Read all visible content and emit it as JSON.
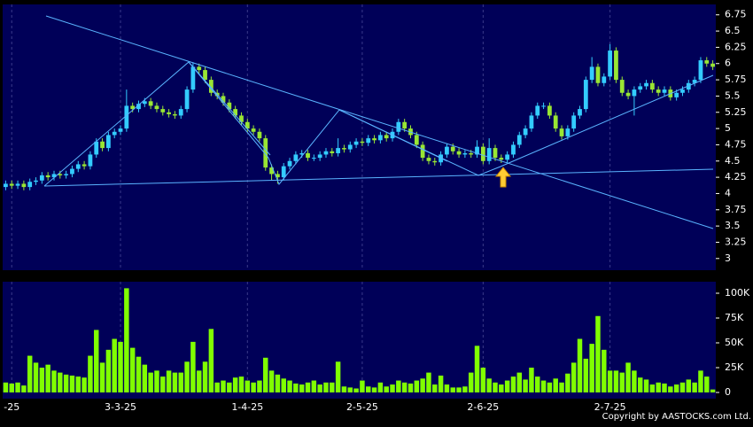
{
  "chart_data": [
    {
      "type": "candlestick",
      "categories": [
        null,
        "-25",
        null,
        null,
        null,
        null,
        null,
        null,
        null,
        null,
        null,
        null,
        null,
        null,
        null,
        null,
        null,
        null,
        null,
        "3-3-25",
        null,
        null,
        null,
        null,
        null,
        null,
        null,
        null,
        null,
        null,
        null,
        null,
        null,
        null,
        null,
        null,
        null,
        null,
        null,
        null,
        "1-4-25",
        null,
        null,
        null,
        null,
        null,
        null,
        null,
        null,
        null,
        null,
        null,
        null,
        null,
        null,
        null,
        null,
        null,
        null,
        "2-5-25",
        null,
        null,
        null,
        null,
        null,
        null,
        null,
        null,
        null,
        null,
        null,
        null,
        null,
        null,
        null,
        null,
        null,
        null,
        null,
        "2-6-25",
        null,
        null,
        null,
        null,
        null,
        null,
        null,
        null,
        null,
        null,
        null,
        null,
        null,
        null,
        null,
        null,
        null,
        null,
        null,
        null,
        "2-7-25",
        null,
        null,
        null,
        null,
        null,
        null,
        null,
        null,
        null,
        null,
        null,
        null,
        null,
        null,
        null,
        null,
        null
      ],
      "open": [
        4.1,
        4.15,
        4.12,
        4.15,
        4.1,
        4.18,
        4.2,
        4.28,
        4.25,
        4.3,
        4.28,
        4.3,
        4.38,
        4.45,
        4.42,
        4.6,
        4.8,
        4.7,
        4.9,
        4.95,
        5.0,
        5.35,
        5.3,
        5.38,
        5.42,
        5.35,
        5.3,
        5.25,
        5.22,
        5.2,
        5.3,
        5.6,
        5.95,
        5.9,
        5.75,
        5.55,
        5.5,
        5.4,
        5.3,
        5.2,
        5.1,
        5.0,
        4.95,
        4.85,
        4.4,
        4.3,
        4.25,
        4.42,
        4.5,
        4.6,
        4.62,
        4.55,
        4.55,
        4.6,
        4.65,
        4.62,
        4.7,
        4.68,
        4.75,
        4.8,
        4.78,
        4.85,
        4.82,
        4.9,
        4.85,
        4.95,
        5.1,
        5.0,
        4.9,
        4.75,
        4.55,
        4.5,
        4.48,
        4.6,
        4.72,
        4.65,
        4.6,
        4.62,
        4.6,
        4.72,
        4.5,
        4.7,
        4.55,
        4.52,
        4.6,
        4.75,
        4.9,
        5.0,
        5.2,
        5.35,
        5.35,
        5.2,
        5.0,
        4.88,
        5.0,
        5.2,
        5.3,
        5.75,
        5.95,
        5.7,
        5.8,
        6.2,
        5.75,
        5.55,
        5.5,
        5.6,
        5.65,
        5.7,
        5.6,
        5.55,
        5.6,
        5.48,
        5.55,
        5.6,
        5.7,
        5.75,
        6.05,
        6.0
      ],
      "high": [
        4.2,
        4.2,
        4.2,
        4.2,
        4.23,
        4.25,
        4.33,
        4.33,
        4.35,
        4.35,
        4.35,
        4.43,
        4.5,
        4.5,
        4.65,
        4.85,
        4.85,
        4.95,
        5.0,
        5.05,
        5.6,
        5.4,
        5.43,
        5.47,
        5.47,
        5.4,
        5.35,
        5.3,
        5.27,
        5.35,
        5.65,
        6.02,
        6.0,
        5.95,
        5.8,
        5.6,
        5.55,
        5.45,
        5.35,
        5.25,
        5.15,
        5.05,
        5.0,
        4.9,
        4.45,
        4.35,
        4.47,
        4.55,
        4.65,
        4.67,
        4.67,
        4.6,
        4.65,
        4.7,
        4.7,
        4.85,
        4.75,
        4.8,
        4.85,
        4.85,
        4.9,
        4.9,
        4.95,
        4.95,
        5.0,
        5.15,
        5.15,
        5.05,
        4.95,
        4.8,
        4.6,
        4.55,
        4.65,
        4.77,
        4.77,
        4.7,
        4.67,
        4.67,
        4.82,
        4.77,
        4.85,
        4.75,
        4.6,
        4.65,
        4.8,
        4.95,
        5.05,
        5.25,
        5.4,
        5.4,
        5.4,
        5.25,
        5.05,
        5.05,
        5.25,
        5.35,
        5.8,
        6.1,
        6.0,
        5.85,
        6.3,
        6.25,
        5.8,
        5.6,
        5.65,
        5.7,
        5.75,
        5.75,
        5.65,
        5.65,
        5.65,
        5.6,
        5.65,
        5.75,
        5.8,
        6.1,
        6.1,
        6.05
      ],
      "low": [
        4.05,
        4.07,
        4.07,
        4.05,
        4.05,
        4.13,
        4.15,
        4.2,
        4.2,
        4.23,
        4.23,
        4.25,
        4.33,
        4.37,
        4.37,
        4.55,
        4.65,
        4.65,
        4.85,
        4.9,
        4.95,
        5.25,
        5.25,
        5.33,
        5.3,
        5.25,
        5.2,
        5.17,
        5.15,
        5.15,
        5.25,
        5.55,
        5.85,
        5.7,
        5.5,
        5.45,
        5.35,
        5.25,
        5.15,
        5.05,
        4.95,
        4.9,
        4.8,
        4.35,
        4.2,
        4.15,
        4.2,
        4.37,
        4.45,
        4.55,
        4.5,
        4.5,
        4.5,
        4.55,
        4.57,
        4.57,
        4.63,
        4.63,
        4.7,
        4.73,
        4.73,
        4.77,
        4.77,
        4.8,
        4.8,
        4.9,
        4.95,
        4.85,
        4.7,
        4.5,
        4.45,
        4.43,
        4.43,
        4.55,
        4.6,
        4.55,
        4.55,
        4.55,
        4.55,
        4.45,
        4.45,
        4.5,
        4.47,
        4.47,
        4.55,
        4.7,
        4.85,
        4.95,
        5.15,
        5.3,
        5.15,
        4.95,
        4.83,
        4.83,
        4.95,
        5.15,
        5.25,
        5.7,
        5.65,
        5.65,
        5.75,
        5.7,
        5.5,
        5.45,
        5.2,
        5.55,
        5.6,
        5.55,
        5.5,
        5.5,
        5.43,
        5.43,
        5.5,
        5.55,
        5.65,
        5.7,
        5.95,
        5.9
      ],
      "close": [
        4.15,
        4.12,
        4.15,
        4.1,
        4.18,
        4.2,
        4.28,
        4.25,
        4.3,
        4.28,
        4.3,
        4.38,
        4.45,
        4.42,
        4.6,
        4.8,
        4.7,
        4.9,
        4.95,
        5.0,
        5.35,
        5.3,
        5.38,
        5.42,
        5.35,
        5.3,
        5.25,
        5.22,
        5.2,
        5.3,
        5.6,
        5.95,
        5.9,
        5.75,
        5.55,
        5.5,
        5.4,
        5.3,
        5.2,
        5.1,
        5.0,
        4.95,
        4.85,
        4.4,
        4.3,
        4.25,
        4.42,
        4.5,
        4.6,
        4.62,
        4.55,
        4.55,
        4.6,
        4.65,
        4.62,
        4.7,
        4.68,
        4.75,
        4.8,
        4.78,
        4.85,
        4.82,
        4.9,
        4.85,
        4.95,
        5.1,
        5.0,
        4.9,
        4.75,
        4.55,
        4.5,
        4.48,
        4.6,
        4.72,
        4.65,
        4.6,
        4.62,
        4.6,
        4.72,
        4.5,
        4.7,
        4.55,
        4.52,
        4.6,
        4.75,
        4.9,
        5.0,
        5.2,
        5.35,
        5.35,
        5.2,
        5.0,
        4.88,
        5.0,
        5.2,
        5.3,
        5.75,
        5.95,
        5.7,
        5.8,
        6.2,
        5.75,
        5.55,
        5.5,
        5.6,
        5.65,
        5.7,
        5.6,
        5.55,
        5.6,
        5.48,
        5.55,
        5.6,
        5.7,
        5.75,
        6.05,
        6.0,
        5.95
      ],
      "up_color": "#33ccff",
      "down_color": "#99e633",
      "ylim": [
        2.82,
        6.91
      ],
      "yticks": [
        6.75,
        6.5,
        6.25,
        6,
        5.75,
        5.5,
        5.25,
        5,
        4.75,
        4.5,
        4.25,
        4,
        3.75,
        3.5,
        3.25,
        3
      ],
      "grid": true
    },
    {
      "type": "bar",
      "values": [
        10000,
        9000,
        10000,
        7000,
        37000,
        30000,
        25000,
        28000,
        22000,
        20000,
        18000,
        17000,
        16000,
        15000,
        37000,
        63000,
        30000,
        43000,
        54000,
        51000,
        105000,
        45000,
        36000,
        28000,
        20000,
        22000,
        16000,
        22000,
        20000,
        20000,
        31000,
        51000,
        22000,
        31000,
        64000,
        10000,
        12000,
        10000,
        15000,
        16000,
        12000,
        10000,
        12000,
        35000,
        22000,
        18000,
        14000,
        12000,
        9000,
        8000,
        10000,
        12000,
        8000,
        10000,
        10000,
        31000,
        6000,
        5000,
        4000,
        12000,
        6000,
        5000,
        10000,
        6000,
        8000,
        12000,
        10000,
        9000,
        12000,
        14000,
        20000,
        8000,
        17000,
        8000,
        5000,
        5000,
        6000,
        20000,
        47000,
        25000,
        14000,
        10000,
        8000,
        12000,
        16000,
        20000,
        13000,
        25000,
        16000,
        12000,
        10000,
        14000,
        10000,
        19000,
        30000,
        54000,
        34000,
        49000,
        77000,
        43000,
        22000,
        22000,
        20000,
        30000,
        22000,
        15000,
        13000,
        8000,
        10000,
        9000,
        6000,
        8000,
        10000,
        13000,
        10000,
        22000,
        16000,
        3000
      ],
      "color": "#80ff00",
      "ylim": [
        0,
        111600
      ],
      "yticks": [
        {
          "value": 100000,
          "label": "100K"
        },
        {
          "value": 75000,
          "label": "75K"
        },
        {
          "value": 50000,
          "label": "50K"
        },
        {
          "value": 25000,
          "label": "25K"
        },
        0
      ],
      "grid": true
    }
  ],
  "copyright": "Copyright by AASTOCKS.com Ltd."
}
